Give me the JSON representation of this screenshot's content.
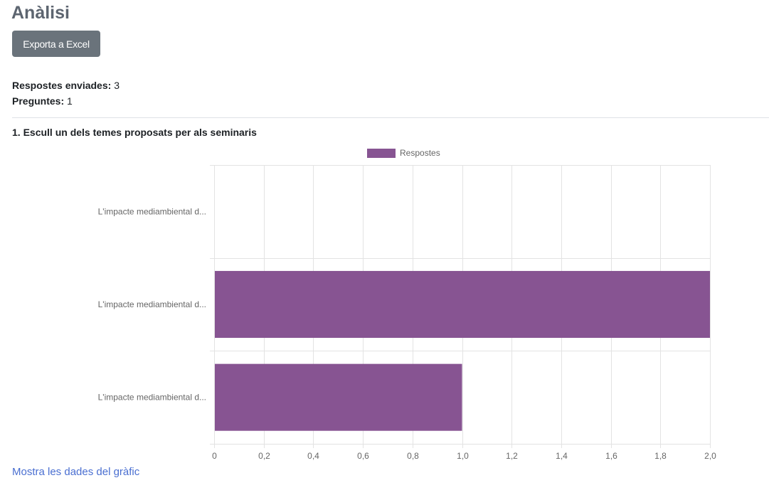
{
  "page": {
    "title": "Anàlisi",
    "export_label": "Exporta a Excel",
    "responses_label": "Respostes enviades:",
    "responses_value": "3",
    "questions_label": "Preguntes:",
    "questions_value": "1",
    "show_data_link": "Mostra les dades del gràfic"
  },
  "question": {
    "title": "1. Escull un dels temes proposats per als seminaris"
  },
  "colors": {
    "bar": "#875492",
    "link": "#4a6fd1",
    "button": "#6a737b",
    "title": "#5d6570"
  },
  "chart_data": {
    "type": "bar",
    "orientation": "horizontal",
    "categories": [
      "L'impacte mediambiental d...",
      "L'impacte mediambiental d...",
      "L'impacte mediambiental d..."
    ],
    "series": [
      {
        "name": "Respostes",
        "values": [
          0,
          2,
          1
        ]
      }
    ],
    "xlim": [
      0,
      2
    ],
    "xticks": [
      "0",
      "0,2",
      "0,4",
      "0,6",
      "0,8",
      "1,0",
      "1,2",
      "1,4",
      "1,6",
      "1,8",
      "2,0"
    ],
    "grid": true,
    "legend": "top-center"
  }
}
